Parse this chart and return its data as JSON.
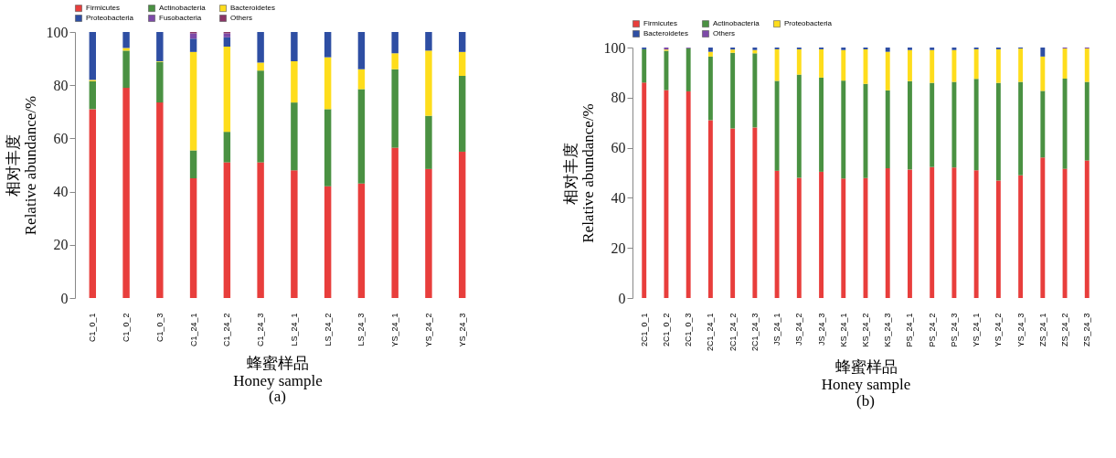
{
  "chart_data": [
    {
      "type": "bar",
      "stacked": true,
      "title": "(a)",
      "xlabel": "蜂蜜样品\nHoney sample",
      "ylabel": "相对丰度\nRelative abundance/%",
      "legend": "top",
      "ylim": [
        0,
        100
      ],
      "yticks": [
        0,
        20,
        40,
        60,
        80,
        100
      ],
      "categories": [
        "C1_0_1",
        "C1_0_2",
        "C1_0_3",
        "C1_24_1",
        "C1_24_2",
        "C1_24_3",
        "LS_24_1",
        "LS_24_2",
        "LS_24_3",
        "YS_24_1",
        "YS_24_2",
        "YS_24_3"
      ],
      "series": [
        {
          "name": "Firmicutes",
          "color": "#e83e3c",
          "values": [
            71,
            79,
            73.5,
            45,
            51,
            51,
            48,
            42,
            43,
            56.5,
            48.5,
            55
          ]
        },
        {
          "name": "Actinobacteria",
          "color": "#4a9142",
          "values": [
            10.5,
            14,
            15.3,
            10.5,
            11.5,
            34.5,
            25.5,
            29,
            35.5,
            29.5,
            20,
            28.5
          ]
        },
        {
          "name": "Bacteroidetes",
          "color": "#fedd1c",
          "values": [
            0.5,
            1,
            0.2,
            37,
            32,
            3,
            15.5,
            19.5,
            7.5,
            6,
            24.5,
            9
          ]
        },
        {
          "name": "Proteobacteria",
          "color": "#2e4ea3",
          "values": [
            18,
            6,
            11,
            5,
            3.5,
            11.5,
            11,
            9.5,
            14,
            8,
            7,
            7.5
          ]
        },
        {
          "name": "Fusobacteria",
          "color": "#7d4aa8",
          "values": [
            0,
            0,
            0,
            2,
            1.5,
            0,
            0,
            0,
            0,
            0,
            0,
            0
          ]
        },
        {
          "name": "Others",
          "color": "#8a3566",
          "values": [
            0,
            0,
            0,
            0.5,
            0.5,
            0,
            0,
            0,
            0,
            0,
            0,
            0
          ]
        }
      ]
    },
    {
      "type": "bar",
      "stacked": true,
      "title": "(b)",
      "xlabel": "蜂蜜样品\nHoney sample",
      "ylabel": "相对丰度\nRelative abundance/%",
      "legend": "top",
      "ylim": [
        0,
        100
      ],
      "yticks": [
        0,
        20,
        40,
        60,
        80,
        100
      ],
      "categories": [
        "2C1_0_1",
        "2C1_0_2",
        "2C1_0_3",
        "2C1_24_1",
        "2C1_24_2",
        "2C1_24_3",
        "JS_24_1",
        "JS_24_2",
        "JS_24_3",
        "KS_24_1",
        "KS_24_2",
        "KS_24_3",
        "PS_24_1",
        "PS_24_2",
        "PS_24_3",
        "YS_24_1",
        "YS_24_2",
        "YS_24_3",
        "ZS_24_1",
        "ZS_24_2",
        "ZS_24_3"
      ],
      "series": [
        {
          "name": "Firmicutes",
          "color": "#e83e3c",
          "values": [
            86,
            83,
            82.5,
            71,
            67.7,
            68.1,
            50.8,
            48,
            50.4,
            47.7,
            47.9,
            51.8,
            51.3,
            52.3,
            52.1,
            51,
            46.9,
            49,
            56.1,
            51.6,
            54.9
          ]
        },
        {
          "name": "Actinobacteria",
          "color": "#4a9142",
          "values": [
            13.3,
            15.7,
            17.2,
            25.4,
            30.2,
            29.6,
            35.9,
            41.2,
            37.6,
            39.1,
            37.6,
            31.1,
            35.3,
            33.6,
            34.2,
            36.5,
            39,
            37.3,
            26.6,
            36,
            31.4
          ]
        },
        {
          "name": "Proteobacteria",
          "color": "#fedd1c",
          "values": [
            0,
            0.5,
            0,
            1.9,
            1.3,
            1.3,
            12.6,
            10.1,
            11.3,
            12.2,
            13.8,
            15.4,
            12.4,
            13.1,
            12.7,
            11.8,
            13.4,
            13.3,
            13.7,
            12,
            13.3
          ]
        },
        {
          "name": "Bacteroidetes",
          "color": "#2e4ea3",
          "values": [
            0.7,
            0,
            0,
            1.7,
            0.8,
            1,
            0.7,
            0.7,
            0.7,
            1,
            0.7,
            1.7,
            1,
            1,
            1,
            0.7,
            0.7,
            0.4,
            3.6,
            0,
            0
          ]
        },
        {
          "name": "Others",
          "color": "#7d4aa8",
          "values": [
            0,
            0.8,
            0.3,
            0,
            0,
            0,
            0,
            0,
            0,
            0,
            0,
            0,
            0,
            0,
            0,
            0,
            0,
            0,
            0,
            0.4,
            0.4
          ]
        }
      ]
    }
  ]
}
